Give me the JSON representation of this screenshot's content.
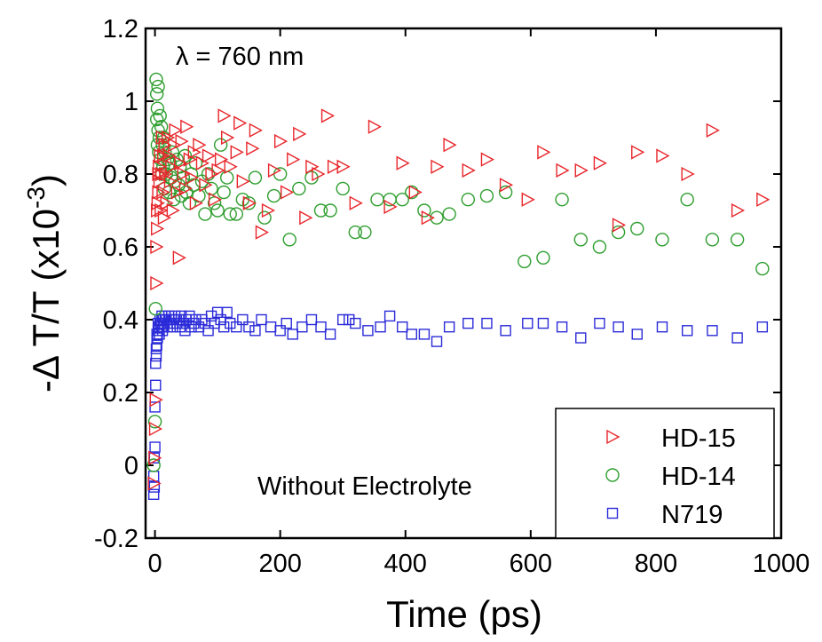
{
  "chart_data": {
    "type": "scatter",
    "xlabel": "Time (ps)",
    "ylabel": "-Δ T/T (x10",
    "ylabel_exp": "-3",
    "ylabel_close": ")",
    "xlim": [
      -15,
      1000
    ],
    "ylim": [
      -0.2,
      1.2
    ],
    "xticks": [
      0,
      200,
      400,
      600,
      800,
      1000
    ],
    "xtick_labels": [
      "0",
      "200",
      "400",
      "600",
      "800",
      "1000"
    ],
    "yticks": [
      -0.2,
      0,
      0.2,
      0.4,
      0.6,
      0.8,
      1,
      1.2
    ],
    "ytick_labels": [
      "-0.2",
      "0",
      "0.2",
      "0.4",
      "0.6",
      "0.8",
      "1",
      "1.2"
    ],
    "grid": false,
    "legend_position": "bottom-right",
    "annotations": [
      "λ = 760 nm",
      "Without Electrolyte"
    ],
    "series": [
      {
        "name": "HD-15",
        "marker": "triangle-right",
        "color": "#e8262b",
        "points": [
          [
            -2,
            -0.05
          ],
          [
            -1,
            0.02
          ],
          [
            0,
            0.1
          ],
          [
            1,
            0.18
          ],
          [
            2,
            0.5
          ],
          [
            2,
            0.6
          ],
          [
            3,
            0.65
          ],
          [
            3,
            0.7
          ],
          [
            4,
            0.72
          ],
          [
            5,
            0.75
          ],
          [
            5,
            0.8
          ],
          [
            6,
            0.82
          ],
          [
            7,
            0.78
          ],
          [
            8,
            0.85
          ],
          [
            9,
            0.7
          ],
          [
            10,
            0.8
          ],
          [
            11,
            0.9
          ],
          [
            12,
            0.75
          ],
          [
            13,
            0.85
          ],
          [
            14,
            0.68
          ],
          [
            15,
            0.88
          ],
          [
            16,
            0.8
          ],
          [
            18,
            0.72
          ],
          [
            20,
            0.9
          ],
          [
            22,
            0.85
          ],
          [
            24,
            0.78
          ],
          [
            26,
            0.82
          ],
          [
            28,
            0.7
          ],
          [
            30,
            0.88
          ],
          [
            32,
            0.92
          ],
          [
            35,
            0.75
          ],
          [
            38,
            0.57
          ],
          [
            40,
            0.83
          ],
          [
            42,
            0.89
          ],
          [
            45,
            0.8
          ],
          [
            48,
            0.76
          ],
          [
            50,
            0.93
          ],
          [
            55,
            0.84
          ],
          [
            58,
            0.79
          ],
          [
            62,
            0.86
          ],
          [
            65,
            0.72
          ],
          [
            70,
            0.88
          ],
          [
            75,
            0.83
          ],
          [
            80,
            0.77
          ],
          [
            85,
            0.85
          ],
          [
            90,
            0.8
          ],
          [
            95,
            0.73
          ],
          [
            100,
            0.81
          ],
          [
            105,
            0.84
          ],
          [
            110,
            0.96
          ],
          [
            115,
            0.9
          ],
          [
            120,
            0.82
          ],
          [
            130,
            0.86
          ],
          [
            135,
            0.94
          ],
          [
            140,
            0.78
          ],
          [
            150,
            0.72
          ],
          [
            155,
            0.87
          ],
          [
            160,
            0.92
          ],
          [
            170,
            0.64
          ],
          [
            180,
            0.7
          ],
          [
            190,
            0.81
          ],
          [
            200,
            0.89
          ],
          [
            210,
            0.75
          ],
          [
            220,
            0.84
          ],
          [
            230,
            0.91
          ],
          [
            240,
            0.68
          ],
          [
            250,
            0.82
          ],
          [
            260,
            0.8
          ],
          [
            275,
            0.96
          ],
          [
            285,
            0.82
          ],
          [
            300,
            0.82
          ],
          [
            320,
            0.72
          ],
          [
            350,
            0.93
          ],
          [
            375,
            0.71
          ],
          [
            395,
            0.83
          ],
          [
            415,
            0.75
          ],
          [
            435,
            0.68
          ],
          [
            450,
            0.82
          ],
          [
            470,
            0.88
          ],
          [
            500,
            0.81
          ],
          [
            530,
            0.84
          ],
          [
            560,
            0.77
          ],
          [
            595,
            0.73
          ],
          [
            620,
            0.86
          ],
          [
            650,
            0.81
          ],
          [
            680,
            0.81
          ],
          [
            710,
            0.83
          ],
          [
            740,
            0.66
          ],
          [
            770,
            0.86
          ],
          [
            810,
            0.85
          ],
          [
            850,
            0.8
          ],
          [
            890,
            0.92
          ],
          [
            930,
            0.7
          ],
          [
            970,
            0.73
          ]
        ]
      },
      {
        "name": "HD-14",
        "marker": "circle",
        "color": "#2e9e2e",
        "points": [
          [
            -2,
            0.0
          ],
          [
            0,
            0.12
          ],
          [
            1,
            0.43
          ],
          [
            2,
            1.06
          ],
          [
            3,
            1.02
          ],
          [
            3,
            0.95
          ],
          [
            4,
            0.98
          ],
          [
            4,
            0.88
          ],
          [
            5,
            0.92
          ],
          [
            5,
            1.04
          ],
          [
            6,
            0.86
          ],
          [
            7,
            0.9
          ],
          [
            8,
            0.96
          ],
          [
            9,
            0.84
          ],
          [
            10,
            0.93
          ],
          [
            11,
            0.8
          ],
          [
            12,
            0.88
          ],
          [
            13,
            0.82
          ],
          [
            14,
            0.9
          ],
          [
            15,
            0.76
          ],
          [
            16,
            0.86
          ],
          [
            18,
            0.8
          ],
          [
            20,
            0.84
          ],
          [
            22,
            0.75
          ],
          [
            24,
            0.83
          ],
          [
            26,
            0.79
          ],
          [
            28,
            0.86
          ],
          [
            30,
            0.73
          ],
          [
            32,
            0.78
          ],
          [
            35,
            0.84
          ],
          [
            38,
            0.77
          ],
          [
            40,
            0.82
          ],
          [
            42,
            0.74
          ],
          [
            45,
            0.79
          ],
          [
            48,
            0.85
          ],
          [
            50,
            0.75
          ],
          [
            55,
            0.72
          ],
          [
            58,
            0.8
          ],
          [
            62,
            0.77
          ],
          [
            65,
            0.83
          ],
          [
            70,
            0.74
          ],
          [
            75,
            0.78
          ],
          [
            80,
            0.69
          ],
          [
            85,
            0.8
          ],
          [
            90,
            0.76
          ],
          [
            95,
            0.72
          ],
          [
            100,
            0.7
          ],
          [
            105,
            0.88
          ],
          [
            110,
            0.75
          ],
          [
            115,
            0.79
          ],
          [
            120,
            0.69
          ],
          [
            130,
            0.69
          ],
          [
            140,
            0.73
          ],
          [
            150,
            0.72
          ],
          [
            160,
            0.79
          ],
          [
            175,
            0.68
          ],
          [
            190,
            0.74
          ],
          [
            200,
            0.8
          ],
          [
            215,
            0.62
          ],
          [
            230,
            0.76
          ],
          [
            250,
            0.79
          ],
          [
            265,
            0.7
          ],
          [
            280,
            0.7
          ],
          [
            300,
            0.76
          ],
          [
            320,
            0.64
          ],
          [
            335,
            0.64
          ],
          [
            355,
            0.73
          ],
          [
            375,
            0.73
          ],
          [
            395,
            0.73
          ],
          [
            410,
            0.75
          ],
          [
            430,
            0.7
          ],
          [
            450,
            0.68
          ],
          [
            470,
            0.69
          ],
          [
            500,
            0.73
          ],
          [
            530,
            0.74
          ],
          [
            560,
            0.75
          ],
          [
            590,
            0.56
          ],
          [
            620,
            0.57
          ],
          [
            650,
            0.73
          ],
          [
            680,
            0.62
          ],
          [
            710,
            0.6
          ],
          [
            740,
            0.64
          ],
          [
            770,
            0.65
          ],
          [
            810,
            0.62
          ],
          [
            850,
            0.73
          ],
          [
            890,
            0.62
          ],
          [
            930,
            0.62
          ],
          [
            970,
            0.54
          ]
        ]
      },
      {
        "name": "N719",
        "marker": "square",
        "color": "#2b2bd9",
        "points": [
          [
            -2,
            -0.08
          ],
          [
            -2,
            -0.03
          ],
          [
            -1,
            0.02
          ],
          [
            -1,
            -0.06
          ],
          [
            0,
            0.05
          ],
          [
            0,
            0.16
          ],
          [
            1,
            0.22
          ],
          [
            1,
            0.28
          ],
          [
            2,
            0.3
          ],
          [
            2,
            0.32
          ],
          [
            3,
            0.33
          ],
          [
            3,
            0.36
          ],
          [
            4,
            0.35
          ],
          [
            5,
            0.37
          ],
          [
            5,
            0.39
          ],
          [
            6,
            0.38
          ],
          [
            7,
            0.36
          ],
          [
            8,
            0.4
          ],
          [
            9,
            0.39
          ],
          [
            10,
            0.38
          ],
          [
            11,
            0.41
          ],
          [
            12,
            0.37
          ],
          [
            13,
            0.4
          ],
          [
            14,
            0.38
          ],
          [
            15,
            0.39
          ],
          [
            16,
            0.41
          ],
          [
            18,
            0.4
          ],
          [
            20,
            0.38
          ],
          [
            22,
            0.41
          ],
          [
            24,
            0.39
          ],
          [
            26,
            0.4
          ],
          [
            28,
            0.38
          ],
          [
            30,
            0.4
          ],
          [
            32,
            0.41
          ],
          [
            35,
            0.39
          ],
          [
            38,
            0.4
          ],
          [
            40,
            0.38
          ],
          [
            42,
            0.41
          ],
          [
            45,
            0.39
          ],
          [
            48,
            0.37
          ],
          [
            50,
            0.4
          ],
          [
            55,
            0.41
          ],
          [
            58,
            0.38
          ],
          [
            62,
            0.39
          ],
          [
            65,
            0.4
          ],
          [
            70,
            0.38
          ],
          [
            75,
            0.4
          ],
          [
            80,
            0.39
          ],
          [
            85,
            0.37
          ],
          [
            90,
            0.41
          ],
          [
            95,
            0.39
          ],
          [
            100,
            0.42
          ],
          [
            105,
            0.4
          ],
          [
            110,
            0.38
          ],
          [
            115,
            0.42
          ],
          [
            120,
            0.39
          ],
          [
            130,
            0.38
          ],
          [
            140,
            0.4
          ],
          [
            150,
            0.38
          ],
          [
            160,
            0.37
          ],
          [
            170,
            0.4
          ],
          [
            185,
            0.38
          ],
          [
            200,
            0.37
          ],
          [
            210,
            0.39
          ],
          [
            220,
            0.36
          ],
          [
            235,
            0.38
          ],
          [
            250,
            0.4
          ],
          [
            265,
            0.38
          ],
          [
            280,
            0.36
          ],
          [
            300,
            0.4
          ],
          [
            310,
            0.4
          ],
          [
            320,
            0.39
          ],
          [
            340,
            0.37
          ],
          [
            360,
            0.38
          ],
          [
            375,
            0.41
          ],
          [
            395,
            0.38
          ],
          [
            410,
            0.36
          ],
          [
            430,
            0.36
          ],
          [
            450,
            0.34
          ],
          [
            470,
            0.38
          ],
          [
            500,
            0.39
          ],
          [
            530,
            0.39
          ],
          [
            560,
            0.37
          ],
          [
            595,
            0.39
          ],
          [
            620,
            0.39
          ],
          [
            650,
            0.38
          ],
          [
            680,
            0.35
          ],
          [
            710,
            0.39
          ],
          [
            740,
            0.38
          ],
          [
            770,
            0.36
          ],
          [
            810,
            0.38
          ],
          [
            850,
            0.37
          ],
          [
            890,
            0.37
          ],
          [
            930,
            0.35
          ],
          [
            970,
            0.38
          ]
        ]
      }
    ]
  }
}
